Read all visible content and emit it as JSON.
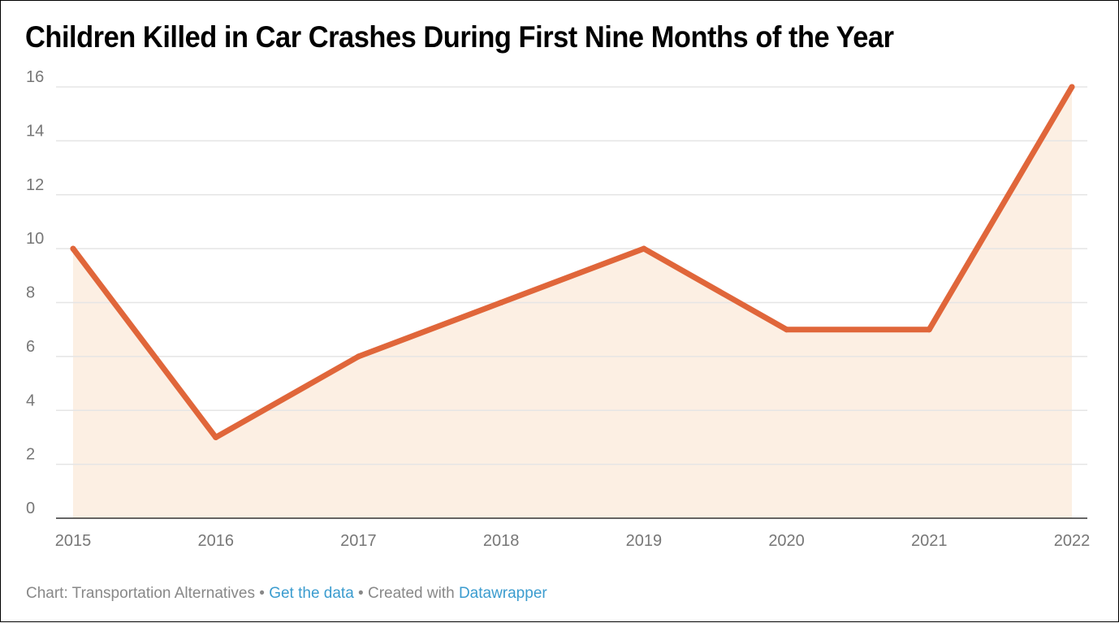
{
  "chart_data": {
    "type": "area",
    "title": "Children Killed in Car Crashes During First Nine Months of the Year",
    "x": [
      "2015",
      "2016",
      "2017",
      "2018",
      "2019",
      "2020",
      "2021",
      "2022"
    ],
    "series": [
      {
        "values": [
          10,
          3,
          6,
          8,
          10,
          7,
          7,
          16
        ]
      }
    ],
    "ylim": [
      0,
      16
    ],
    "yticks": [
      0,
      2,
      4,
      6,
      8,
      10,
      12,
      14,
      16
    ],
    "grid": true,
    "xlabel": "",
    "ylabel": "",
    "colors": {
      "line": "#e0663a",
      "area": "#fcefe3",
      "grid": "#e5e5e5",
      "axis": "#333333",
      "tick_text": "#777777",
      "link": "#3b9ccf"
    }
  },
  "footer": {
    "source": "Chart: Transportation Alternatives",
    "sep1": " • ",
    "get_data": "Get the data",
    "sep2": " • Created with ",
    "datawrapper": "Datawrapper"
  }
}
